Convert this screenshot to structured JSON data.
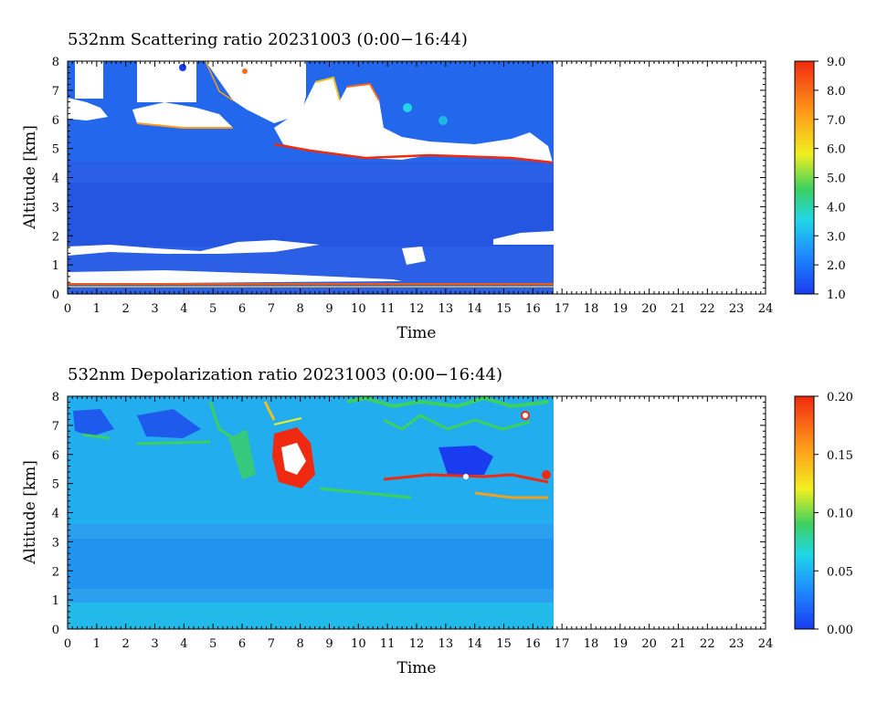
{
  "chart_data": [
    {
      "type": "heatmap",
      "title": "532nm Scattering ratio  20231003 (0:00−16:44)",
      "xlabel": "Time",
      "ylabel": "Altitude [km]",
      "xlim": [
        0,
        24
      ],
      "ylim": [
        0,
        8
      ],
      "x_ticks": [
        "0",
        "1",
        "2",
        "3",
        "4",
        "5",
        "6",
        "7",
        "8",
        "9",
        "10",
        "11",
        "12",
        "13",
        "14",
        "15",
        "16",
        "17",
        "18",
        "19",
        "20",
        "21",
        "22",
        "23",
        "24"
      ],
      "y_ticks": [
        "0",
        "1",
        "2",
        "3",
        "4",
        "5",
        "6",
        "7",
        "8"
      ],
      "data_end_hour": 16.73,
      "colorbar": {
        "range": [
          1.0,
          9.0
        ],
        "ticks": [
          "1.0",
          "2.0",
          "3.0",
          "4.0",
          "5.0",
          "6.0",
          "7.0",
          "8.0",
          "9.0"
        ]
      }
    },
    {
      "type": "heatmap",
      "title": "532nm Depolarization ratio  20231003 (0:00−16:44)",
      "xlabel": "Time",
      "ylabel": "Altitude [km]",
      "xlim": [
        0,
        24
      ],
      "ylim": [
        0,
        8
      ],
      "x_ticks": [
        "0",
        "1",
        "2",
        "3",
        "4",
        "5",
        "6",
        "7",
        "8",
        "9",
        "10",
        "11",
        "12",
        "13",
        "14",
        "15",
        "16",
        "17",
        "18",
        "19",
        "20",
        "21",
        "22",
        "23",
        "24"
      ],
      "y_ticks": [
        "0",
        "1",
        "2",
        "3",
        "4",
        "5",
        "6",
        "7",
        "8"
      ],
      "data_end_hour": 16.73,
      "colorbar": {
        "range": [
          0.0,
          0.2
        ],
        "ticks": [
          "0.00",
          "0.05",
          "0.10",
          "0.15",
          "0.20"
        ]
      }
    }
  ]
}
